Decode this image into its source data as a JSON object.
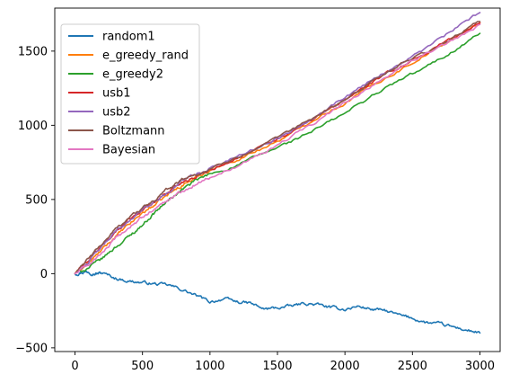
{
  "chart_data": {
    "type": "line",
    "title": "",
    "xlabel": "",
    "ylabel": "",
    "xlim": [
      -150,
      3150
    ],
    "ylim": [
      -525,
      1790
    ],
    "xticks": [
      0,
      500,
      1000,
      1500,
      2000,
      2500,
      3000
    ],
    "yticks": [
      -500,
      0,
      500,
      1000,
      1500
    ],
    "grid": false,
    "legend_position": "top-left",
    "series": [
      {
        "name": "random1",
        "color": "#1f77b4",
        "x": [
          0,
          50,
          100,
          150,
          200,
          300,
          400,
          500,
          600,
          700,
          800,
          900,
          1000,
          1100,
          1200,
          1300,
          1400,
          1500,
          1600,
          1700,
          1800,
          1900,
          2000,
          2100,
          2200,
          2300,
          2400,
          2500,
          2600,
          2700,
          2800,
          2900,
          3000
        ],
        "y": [
          0,
          10,
          15,
          0,
          5,
          -30,
          -50,
          -60,
          -70,
          -80,
          -110,
          -150,
          -190,
          -170,
          -190,
          -200,
          -240,
          -230,
          -220,
          -200,
          -210,
          -230,
          -240,
          -220,
          -240,
          -250,
          -280,
          -300,
          -330,
          -340,
          -360,
          -380,
          -400
        ]
      },
      {
        "name": "e_greedy_rand",
        "color": "#ff7f0e",
        "x": [
          0,
          100,
          200,
          300,
          400,
          500,
          600,
          700,
          800,
          900,
          1000,
          1200,
          1400,
          1600,
          1800,
          2000,
          2200,
          2400,
          2600,
          2800,
          3000
        ],
        "y": [
          0,
          70,
          160,
          250,
          330,
          410,
          470,
          540,
          600,
          650,
          700,
          770,
          850,
          940,
          1060,
          1150,
          1270,
          1370,
          1480,
          1580,
          1690
        ]
      },
      {
        "name": "e_greedy2",
        "color": "#2ca02c",
        "x": [
          0,
          100,
          200,
          300,
          400,
          500,
          600,
          700,
          800,
          900,
          1000,
          1200,
          1400,
          1600,
          1800,
          2000,
          2200,
          2400,
          2600,
          2800,
          3000
        ],
        "y": [
          0,
          40,
          100,
          180,
          250,
          330,
          420,
          500,
          570,
          630,
          670,
          730,
          810,
          890,
          980,
          1080,
          1200,
          1300,
          1390,
          1500,
          1620
        ]
      },
      {
        "name": "usb1",
        "color": "#d62728",
        "x": [
          0,
          100,
          200,
          300,
          400,
          500,
          600,
          700,
          800,
          900,
          1000,
          1200,
          1400,
          1600,
          1800,
          2000,
          2200,
          2400,
          2600,
          2800,
          3000
        ],
        "y": [
          0,
          90,
          190,
          280,
          370,
          430,
          490,
          560,
          620,
          660,
          700,
          780,
          860,
          950,
          1060,
          1170,
          1290,
          1390,
          1490,
          1590,
          1690
        ]
      },
      {
        "name": "usb2",
        "color": "#9467bd",
        "x": [
          0,
          100,
          200,
          300,
          400,
          500,
          600,
          700,
          800,
          900,
          1000,
          1200,
          1400,
          1600,
          1800,
          2000,
          2200,
          2400,
          2600,
          2800,
          3000
        ],
        "y": [
          0,
          80,
          180,
          280,
          360,
          430,
          490,
          560,
          630,
          670,
          710,
          790,
          870,
          960,
          1080,
          1190,
          1310,
          1410,
          1520,
          1640,
          1760
        ]
      },
      {
        "name": "Boltzmann",
        "color": "#8c564b",
        "x": [
          0,
          100,
          200,
          300,
          400,
          500,
          600,
          700,
          800,
          900,
          1000,
          1200,
          1400,
          1600,
          1800,
          2000,
          2200,
          2400,
          2600,
          2800,
          3000
        ],
        "y": [
          0,
          100,
          200,
          300,
          380,
          440,
          500,
          580,
          640,
          670,
          700,
          790,
          860,
          960,
          1070,
          1170,
          1300,
          1410,
          1490,
          1590,
          1700
        ]
      },
      {
        "name": "Bayesian",
        "color": "#e377c2",
        "x": [
          0,
          100,
          200,
          300,
          400,
          500,
          600,
          700,
          800,
          900,
          1000,
          1200,
          1400,
          1600,
          1800,
          2000,
          2200,
          2400,
          2600,
          2800,
          3000
        ],
        "y": [
          0,
          60,
          140,
          230,
          310,
          380,
          440,
          500,
          560,
          610,
          650,
          730,
          820,
          920,
          1030,
          1150,
          1270,
          1380,
          1480,
          1570,
          1680
        ]
      }
    ]
  }
}
